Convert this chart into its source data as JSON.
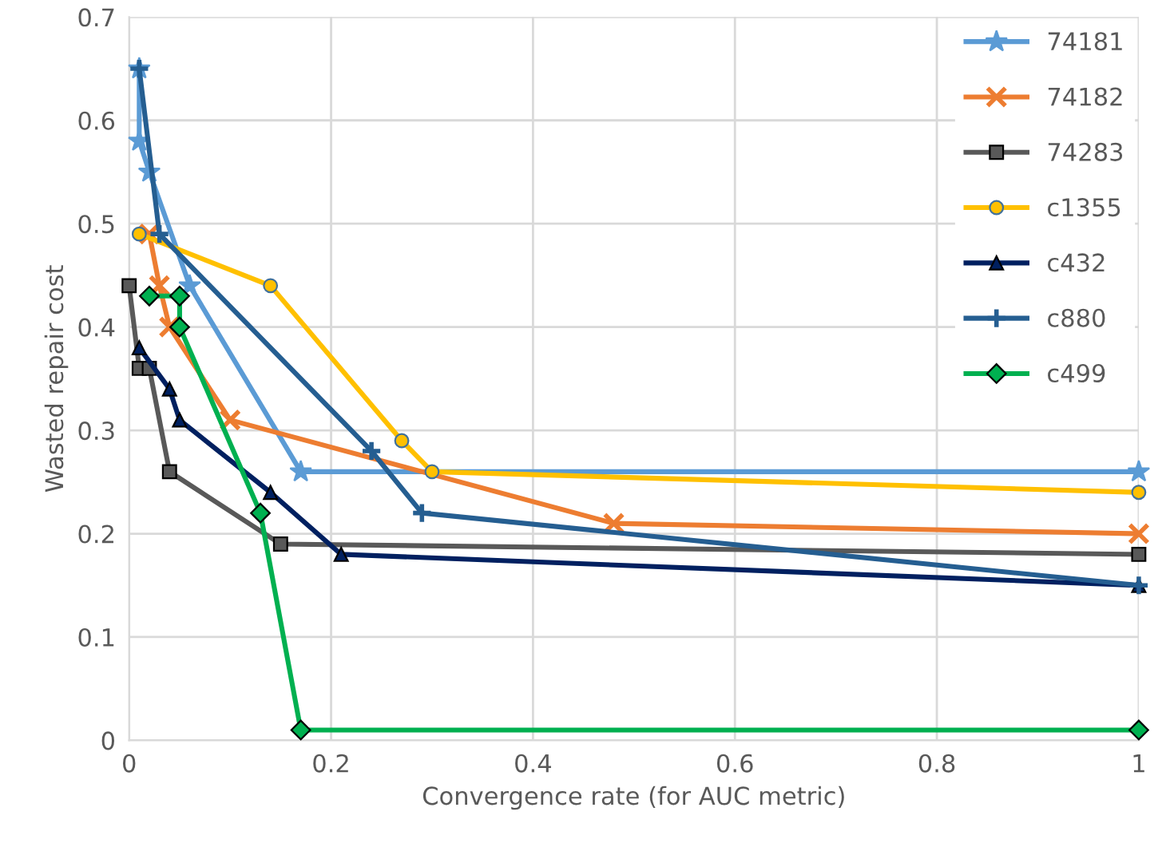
{
  "chart_data": {
    "type": "line",
    "xlabel": "Convergence rate (for AUC metric)",
    "ylabel": "Wasted repair cost",
    "xlim": [
      0,
      1
    ],
    "ylim": [
      0,
      0.7
    ],
    "xticks": [
      0,
      0.2,
      0.4,
      0.6,
      0.8,
      1
    ],
    "yticks": [
      0,
      0.1,
      0.2,
      0.3,
      0.4,
      0.5,
      0.6,
      0.7
    ],
    "grid": true,
    "legend": "right",
    "series": [
      {
        "name": "74181",
        "color": "#5b9bd5",
        "marker": "star",
        "x": [
          0.01,
          0.01,
          0.02,
          0.06,
          0.17,
          1
        ],
        "values": [
          0.65,
          0.58,
          0.55,
          0.44,
          0.26,
          0.26
        ]
      },
      {
        "name": "74182",
        "color": "#ed7d31",
        "marker": "cross",
        "x": [
          0.02,
          0.03,
          0.04,
          0.1,
          0.48,
          1
        ],
        "values": [
          0.49,
          0.44,
          0.4,
          0.31,
          0.21,
          0.2
        ]
      },
      {
        "name": "74283",
        "color": "#595959",
        "marker": "square",
        "x": [
          0,
          0.01,
          0.02,
          0.04,
          0.15,
          1
        ],
        "values": [
          0.44,
          0.36,
          0.36,
          0.26,
          0.19,
          0.18
        ]
      },
      {
        "name": "c1355",
        "color": "#ffc000",
        "marker": "circle",
        "x": [
          0.01,
          0.14,
          0.27,
          0.3,
          1
        ],
        "values": [
          0.49,
          0.44,
          0.29,
          0.26,
          0.24
        ]
      },
      {
        "name": "c432",
        "color": "#002060",
        "marker": "triangle",
        "x": [
          0.01,
          0.04,
          0.05,
          0.14,
          0.21,
          1
        ],
        "values": [
          0.38,
          0.34,
          0.31,
          0.24,
          0.18,
          0.15
        ]
      },
      {
        "name": "c880",
        "color": "#255e91",
        "marker": "plus",
        "x": [
          0.01,
          0.03,
          0.24,
          0.29,
          1
        ],
        "values": [
          0.65,
          0.49,
          0.28,
          0.22,
          0.15
        ]
      },
      {
        "name": "c499",
        "color": "#00b050",
        "marker": "diamond",
        "x": [
          0.02,
          0.05,
          0.05,
          0.13,
          0.17,
          1
        ],
        "values": [
          0.43,
          0.43,
          0.4,
          0.22,
          0.01,
          0.01
        ]
      }
    ]
  }
}
